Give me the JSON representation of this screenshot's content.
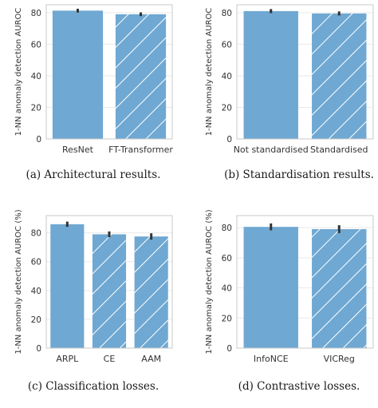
{
  "colors": {
    "bar": "#6fa8d2",
    "hatch": "#ffffff",
    "grid": "#e9e9e9",
    "axis": "#c9c9c9",
    "error": "#333333"
  },
  "chart_data": [
    {
      "type": "bar",
      "ylabel": "1-NN anomaly detection AUROC",
      "yticks": [
        0,
        20,
        40,
        60,
        80
      ],
      "ylim": [
        0,
        85
      ],
      "grid": true,
      "categories": [
        "ResNet",
        "FT-Transformer"
      ],
      "values": [
        81.3,
        79.0
      ],
      "errors": [
        1.2,
        1.2
      ],
      "hatched": [
        false,
        true
      ],
      "caption": "(a) Architectural results."
    },
    {
      "type": "bar",
      "ylabel": "1-NN anomaly detection AUROC",
      "yticks": [
        0,
        20,
        40,
        60,
        80
      ],
      "ylim": [
        0,
        85
      ],
      "grid": true,
      "categories": [
        "Not standardised",
        "Standardised"
      ],
      "values": [
        81.0,
        79.5
      ],
      "errors": [
        1.3,
        1.3
      ],
      "hatched": [
        false,
        true
      ],
      "caption": "(b) Standardisation results."
    },
    {
      "type": "bar",
      "ylabel": "1-NN anomaly detection AUROC (%)",
      "yticks": [
        0,
        20,
        40,
        60,
        80
      ],
      "ylim": [
        0,
        92
      ],
      "grid": true,
      "categories": [
        "ARPL",
        "CE",
        "AAM"
      ],
      "values": [
        86.0,
        79.0,
        77.5
      ],
      "errors": [
        1.8,
        2.0,
        2.2
      ],
      "hatched": [
        false,
        true,
        true
      ],
      "caption": "(c) Classification losses."
    },
    {
      "type": "bar",
      "ylabel": "1-NN anomaly detection AUROC (%)",
      "yticks": [
        0,
        20,
        40,
        60,
        80
      ],
      "ylim": [
        0,
        88
      ],
      "grid": true,
      "categories": [
        "InfoNCE",
        "VICReg"
      ],
      "values": [
        80.5,
        79.0
      ],
      "errors": [
        2.3,
        2.6
      ],
      "hatched": [
        false,
        true
      ],
      "caption": "(d) Contrastive losses."
    }
  ]
}
